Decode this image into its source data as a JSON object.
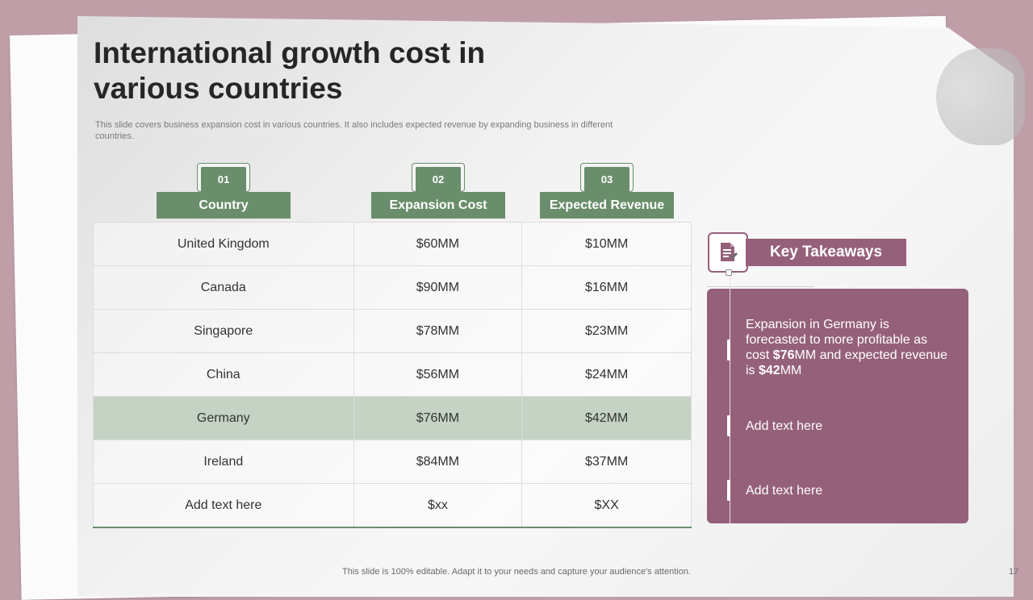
{
  "slide": {
    "title": "International growth cost in various countries",
    "subtitle": "This slide covers business expansion cost in various countries. It also includes expected revenue by expanding business in different countries.",
    "footer": "This slide is 100% editable. Adapt it to your needs and capture your audience's attention.",
    "page_number": "17"
  },
  "columns": [
    {
      "number": "01",
      "label": "Country"
    },
    {
      "number": "02",
      "label": "Expansion Cost"
    },
    {
      "number": "03",
      "label": "Expected Revenue"
    }
  ],
  "rows": [
    {
      "country": "United Kingdom",
      "cost": "$60MM",
      "revenue": "$10MM"
    },
    {
      "country": "Canada",
      "cost": "$90MM",
      "revenue": "$16MM"
    },
    {
      "country": "Singapore",
      "cost": "$78MM",
      "revenue": "$23MM"
    },
    {
      "country": "China",
      "cost": "$56MM",
      "revenue": "$24MM"
    },
    {
      "country": "Germany",
      "cost": "$76MM",
      "revenue": "$42MM"
    },
    {
      "country": "Ireland",
      "cost": "$84MM",
      "revenue": "$37MM"
    },
    {
      "country": "Add text here",
      "cost": "$xx",
      "revenue": "$XX"
    }
  ],
  "highlighted_row": "Germany",
  "takeaways": {
    "label": "Key Takeaways",
    "icon": "document-icon",
    "item1": {
      "part1": "Expansion in Germany is forecasted to more profitable as cost ",
      "cost_bold": "$76",
      "part2": "MM and expected revenue  is ",
      "revenue_bold": "$42",
      "part3": "MM"
    },
    "item2": "Add text here",
    "item3": "Add text here"
  },
  "colors": {
    "background": "#c09ea8",
    "green_accent": "#6a8e6b",
    "highlight_row": "#c5d3c5",
    "mauve_accent": "#95607a"
  }
}
